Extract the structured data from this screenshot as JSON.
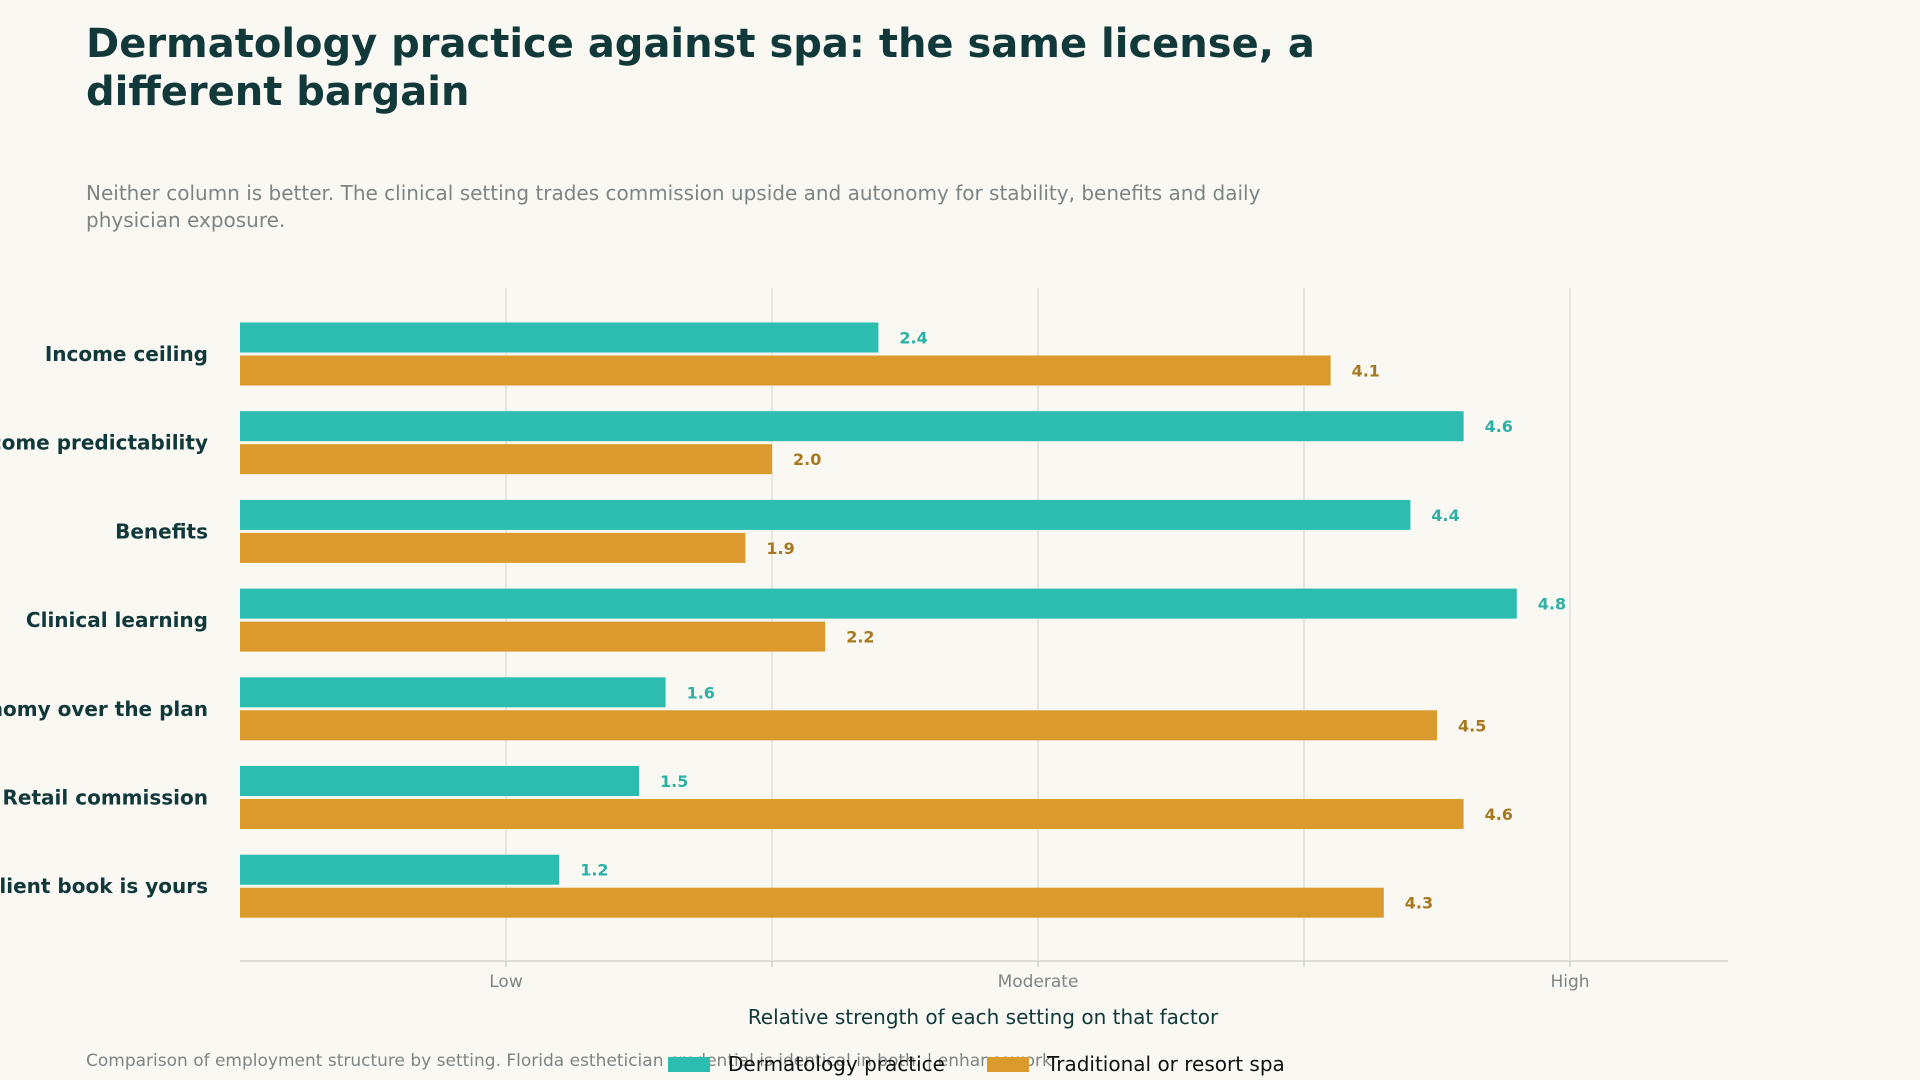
{
  "title": "Dermatology practice against spa: the same license, a different bargain",
  "subtitle": "Neither column is better. The clinical setting trades commission upside and autonomy for stability, benefits and daily physician exposure.",
  "footnote": "Comparison of employment structure by setting. Florida esthetician credential is identical in both. | enhancework",
  "colors": {
    "derm": "#2dbcb0",
    "derm_label": "#2db0a6",
    "spa": "#db9a2e",
    "spa_label": "#a8781e",
    "grid": "#e4e0d8",
    "axis": "#d8d4cc"
  },
  "chart_data": {
    "type": "bar",
    "orientation": "horizontal",
    "categories": [
      "Income ceiling",
      "Income predictability",
      "Benefits",
      "Clinical learning",
      "Autonomy over the plan",
      "Retail commission",
      "Client book is yours"
    ],
    "series": [
      {
        "name": "Dermatology practice",
        "values": [
          2.4,
          4.6,
          4.4,
          4.8,
          1.6,
          1.5,
          1.2
        ]
      },
      {
        "name": "Traditional or resort spa",
        "values": [
          4.1,
          2.0,
          1.9,
          2.2,
          4.5,
          4.6,
          4.3
        ]
      }
    ],
    "xlabel": "Relative strength of each setting on that factor",
    "ylabel": "",
    "xlim": [
      0,
      5.6
    ],
    "grid_ticks": [
      1,
      2,
      3,
      4,
      5
    ],
    "x_tick_labels": [
      {
        "value": 1,
        "label": "Low"
      },
      {
        "value": 3,
        "label": "Moderate"
      },
      {
        "value": 5,
        "label": "High"
      }
    ],
    "grid": true,
    "legend_position": "bottom-center"
  }
}
